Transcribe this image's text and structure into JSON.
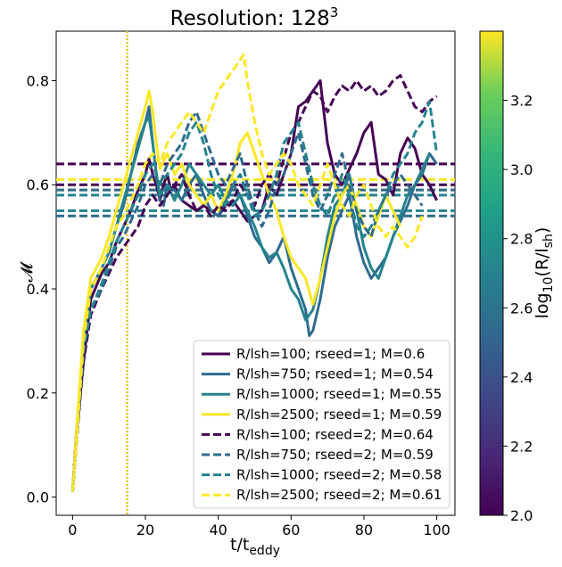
{
  "chart_data": {
    "type": "line",
    "title": "Resolution: 128",
    "title_superscript": "3",
    "xlabel_main": "t/t",
    "xlabel_sub": "eddy",
    "ylabel": "𝓜",
    "xlim": [
      -4.5,
      105
    ],
    "ylim": [
      -0.035,
      0.895
    ],
    "x_ticks": [
      "0",
      "20",
      "40",
      "60",
      "80",
      "100"
    ],
    "y_ticks": [
      "0.0",
      "0.2",
      "0.4",
      "0.6",
      "0.8"
    ],
    "x_tick_values": [
      0,
      20,
      40,
      60,
      80,
      100
    ],
    "y_tick_values": [
      0.0,
      0.2,
      0.4,
      0.6,
      0.8
    ],
    "vline_x": 15,
    "vline_color": "#e8c21e",
    "colorbar": {
      "label_main": "log",
      "label_sub1": "10",
      "label_mid": "(R/l",
      "label_sub2": "sh",
      "label_end": ")",
      "range": [
        2.0,
        3.4
      ],
      "ticks": [
        "2.0",
        "2.2",
        "2.4",
        "2.6",
        "2.8",
        "3.0",
        "3.2"
      ],
      "tick_values": [
        2.0,
        2.2,
        2.4,
        2.6,
        2.8,
        3.0,
        3.2
      ],
      "colormap": "viridis"
    },
    "legend_position": "lower-right",
    "series": [
      {
        "name": "R/lsh=100; rseed=1; M=0.6",
        "color": "#440154",
        "dashed": false,
        "mean": 0.6,
        "x": [
          0,
          1,
          3,
          5,
          8,
          10,
          12,
          14,
          16,
          18,
          20,
          21,
          22,
          23,
          24,
          25,
          26,
          27,
          28,
          29,
          30,
          32,
          34,
          36,
          38,
          40,
          42,
          44,
          46,
          48,
          50,
          52,
          54,
          56,
          58,
          60,
          62,
          64,
          66,
          68,
          70,
          72,
          74,
          76,
          78,
          80,
          82,
          84,
          86,
          88,
          90,
          92,
          94,
          96,
          98,
          100
        ],
        "y": [
          0.01,
          0.12,
          0.26,
          0.38,
          0.43,
          0.45,
          0.49,
          0.52,
          0.55,
          0.59,
          0.62,
          0.65,
          0.62,
          0.6,
          0.57,
          0.6,
          0.62,
          0.59,
          0.6,
          0.58,
          0.57,
          0.56,
          0.55,
          0.56,
          0.55,
          0.54,
          0.56,
          0.57,
          0.55,
          0.53,
          0.54,
          0.55,
          0.6,
          0.58,
          0.62,
          0.66,
          0.75,
          0.76,
          0.78,
          0.8,
          0.68,
          0.62,
          0.6,
          0.63,
          0.66,
          0.7,
          0.72,
          0.62,
          0.61,
          0.58,
          0.66,
          0.69,
          0.67,
          0.62,
          0.6,
          0.57
        ]
      },
      {
        "name": "R/lsh=750; rseed=1; M=0.54",
        "color": "#2f6b8e",
        "dashed": false,
        "mean": 0.54,
        "x": [
          0,
          1,
          3,
          5,
          8,
          10,
          12,
          14,
          16,
          18,
          20,
          21,
          22,
          23,
          24,
          25,
          26,
          28,
          30,
          32,
          34,
          36,
          38,
          40,
          42,
          44,
          46,
          48,
          50,
          52,
          54,
          56,
          58,
          60,
          62,
          64,
          65,
          66,
          68,
          70,
          72,
          74,
          76,
          78,
          80,
          82,
          84,
          86,
          88,
          90,
          92,
          94,
          96,
          98,
          100
        ],
        "y": [
          0.01,
          0.12,
          0.3,
          0.4,
          0.44,
          0.47,
          0.52,
          0.56,
          0.62,
          0.68,
          0.72,
          0.75,
          0.68,
          0.62,
          0.57,
          0.56,
          0.6,
          0.59,
          0.57,
          0.6,
          0.62,
          0.58,
          0.55,
          0.54,
          0.57,
          0.6,
          0.58,
          0.54,
          0.5,
          0.48,
          0.45,
          0.47,
          0.5,
          0.44,
          0.4,
          0.36,
          0.31,
          0.32,
          0.38,
          0.46,
          0.52,
          0.55,
          0.58,
          0.5,
          0.45,
          0.42,
          0.44,
          0.46,
          0.5,
          0.53,
          0.56,
          0.6,
          0.62,
          0.66,
          0.64
        ]
      },
      {
        "name": "R/lsh=1000; rseed=1; M=0.55",
        "color": "#25838e",
        "dashed": false,
        "mean": 0.55,
        "x": [
          0,
          1,
          3,
          5,
          8,
          10,
          12,
          14,
          16,
          18,
          20,
          21,
          22,
          23,
          24,
          26,
          28,
          30,
          32,
          34,
          36,
          38,
          40,
          42,
          44,
          46,
          48,
          50,
          52,
          54,
          56,
          58,
          60,
          62,
          64,
          66,
          68,
          70,
          72,
          74,
          76,
          78,
          80,
          82,
          84,
          86,
          88,
          90,
          92,
          94,
          96,
          98
        ],
        "y": [
          0.01,
          0.12,
          0.3,
          0.4,
          0.44,
          0.47,
          0.52,
          0.57,
          0.62,
          0.67,
          0.72,
          0.73,
          0.68,
          0.62,
          0.58,
          0.6,
          0.57,
          0.6,
          0.64,
          0.62,
          0.6,
          0.58,
          0.6,
          0.57,
          0.56,
          0.58,
          0.55,
          0.52,
          0.48,
          0.46,
          0.47,
          0.44,
          0.4,
          0.38,
          0.34,
          0.36,
          0.42,
          0.5,
          0.56,
          0.58,
          0.62,
          0.55,
          0.48,
          0.44,
          0.42,
          0.46,
          0.5,
          0.54,
          0.58,
          0.6,
          0.63,
          0.66
        ]
      },
      {
        "name": "R/lsh=2500; rseed=1; M=0.59",
        "color": "#fde725",
        "dashed": false,
        "mean": 0.59,
        "x": [
          0,
          1,
          3,
          5,
          8,
          10,
          12,
          14,
          16,
          18,
          20,
          21,
          22,
          23,
          24,
          26,
          28,
          30,
          32,
          34,
          36,
          38,
          40,
          42,
          44,
          46,
          48,
          50,
          52,
          54,
          56,
          58,
          60,
          62,
          64,
          66,
          68,
          70,
          72,
          74,
          76,
          78,
          80,
          82,
          84,
          86,
          88,
          90
        ],
        "y": [
          0.01,
          0.12,
          0.32,
          0.42,
          0.46,
          0.5,
          0.55,
          0.6,
          0.65,
          0.7,
          0.75,
          0.78,
          0.74,
          0.68,
          0.63,
          0.66,
          0.62,
          0.64,
          0.6,
          0.58,
          0.56,
          0.58,
          0.55,
          0.58,
          0.62,
          0.68,
          0.7,
          0.66,
          0.62,
          0.58,
          0.55,
          0.5,
          0.46,
          0.44,
          0.42,
          0.37,
          0.42,
          0.48,
          0.54,
          0.58,
          0.6,
          0.56,
          0.52,
          0.5,
          0.54,
          0.58,
          0.55,
          0.52
        ]
      },
      {
        "name": "R/lsh=100; rseed=2; M=0.64",
        "color": "#440154",
        "dashed": true,
        "mean": 0.64,
        "x": [
          0,
          1,
          3,
          5,
          8,
          10,
          12,
          14,
          16,
          18,
          20,
          22,
          24,
          26,
          28,
          30,
          32,
          34,
          36,
          38,
          40,
          42,
          44,
          46,
          48,
          50,
          52,
          54,
          56,
          58,
          60,
          62,
          64,
          66,
          68,
          70,
          72,
          74,
          76,
          78,
          80,
          82,
          84,
          86,
          88,
          90,
          92,
          94,
          96,
          98,
          100
        ],
        "y": [
          0.01,
          0.1,
          0.26,
          0.35,
          0.4,
          0.43,
          0.46,
          0.48,
          0.5,
          0.52,
          0.56,
          0.58,
          0.56,
          0.58,
          0.6,
          0.62,
          0.58,
          0.55,
          0.56,
          0.54,
          0.56,
          0.55,
          0.57,
          0.6,
          0.58,
          0.56,
          0.6,
          0.62,
          0.6,
          0.65,
          0.7,
          0.72,
          0.75,
          0.78,
          0.77,
          0.74,
          0.77,
          0.79,
          0.78,
          0.8,
          0.78,
          0.79,
          0.77,
          0.78,
          0.8,
          0.81,
          0.78,
          0.75,
          0.74,
          0.76,
          0.77
        ]
      },
      {
        "name": "R/lsh=750; rseed=2; M=0.59",
        "color": "#2f6b8e",
        "dashed": true,
        "mean": 0.59,
        "x": [
          0,
          1,
          3,
          5,
          8,
          10,
          12,
          14,
          16,
          18,
          20,
          22,
          24,
          26,
          28,
          30,
          32,
          34,
          36,
          38,
          40,
          42,
          44,
          46,
          48,
          50,
          52,
          54,
          56,
          58,
          60,
          62,
          64,
          66,
          68,
          70,
          72,
          74,
          76,
          78,
          80,
          82,
          84,
          86,
          88,
          90,
          92,
          94,
          96
        ],
        "y": [
          0.01,
          0.1,
          0.28,
          0.36,
          0.4,
          0.44,
          0.48,
          0.5,
          0.53,
          0.56,
          0.6,
          0.62,
          0.6,
          0.64,
          0.66,
          0.68,
          0.72,
          0.74,
          0.7,
          0.66,
          0.62,
          0.6,
          0.63,
          0.66,
          0.6,
          0.55,
          0.52,
          0.55,
          0.6,
          0.62,
          0.66,
          0.7,
          0.64,
          0.58,
          0.55,
          0.58,
          0.62,
          0.66,
          0.6,
          0.55,
          0.52,
          0.5,
          0.55,
          0.58,
          0.6,
          0.62,
          0.6,
          0.58,
          0.56
        ]
      },
      {
        "name": "R/lsh=1000; rseed=2; M=0.58",
        "color": "#25838e",
        "dashed": true,
        "mean": 0.58,
        "x": [
          0,
          1,
          3,
          5,
          8,
          10,
          12,
          14,
          16,
          18,
          20,
          22,
          24,
          26,
          28,
          30,
          32,
          34,
          36,
          38,
          40,
          42,
          44,
          46,
          48,
          50,
          52,
          54,
          56,
          58,
          60,
          62,
          64,
          66,
          68,
          70,
          72,
          74,
          76,
          78,
          80,
          82,
          84,
          86,
          88,
          90,
          92,
          94,
          96,
          98,
          100
        ],
        "y": [
          0.01,
          0.1,
          0.28,
          0.36,
          0.41,
          0.45,
          0.49,
          0.52,
          0.55,
          0.58,
          0.62,
          0.64,
          0.6,
          0.62,
          0.64,
          0.66,
          0.7,
          0.72,
          0.68,
          0.62,
          0.58,
          0.56,
          0.6,
          0.62,
          0.58,
          0.54,
          0.55,
          0.58,
          0.62,
          0.68,
          0.7,
          0.72,
          0.66,
          0.6,
          0.56,
          0.54,
          0.58,
          0.62,
          0.58,
          0.52,
          0.5,
          0.52,
          0.55,
          0.58,
          0.62,
          0.64,
          0.66,
          0.7,
          0.72,
          0.76,
          0.66
        ]
      },
      {
        "name": "R/lsh=2500; rseed=2; M=0.61",
        "color": "#fde725",
        "dashed": true,
        "mean": 0.61,
        "x": [
          0,
          1,
          3,
          5,
          8,
          10,
          12,
          14,
          16,
          18,
          20,
          22,
          24,
          26,
          28,
          30,
          32,
          34,
          36,
          38,
          40,
          42,
          44,
          46,
          47,
          48,
          50,
          52,
          54,
          56,
          58,
          60,
          62,
          64,
          66,
          68,
          70,
          72,
          74,
          76,
          78,
          80,
          82,
          84,
          86,
          88,
          90,
          92,
          94,
          96
        ],
        "y": [
          0.01,
          0.1,
          0.3,
          0.4,
          0.44,
          0.48,
          0.52,
          0.54,
          0.57,
          0.6,
          0.64,
          0.66,
          0.64,
          0.68,
          0.7,
          0.72,
          0.74,
          0.72,
          0.7,
          0.74,
          0.78,
          0.8,
          0.82,
          0.84,
          0.85,
          0.8,
          0.72,
          0.66,
          0.62,
          0.64,
          0.66,
          0.64,
          0.6,
          0.58,
          0.56,
          0.6,
          0.64,
          0.6,
          0.56,
          0.54,
          0.58,
          0.6,
          0.56,
          0.52,
          0.5,
          0.52,
          0.5,
          0.48,
          0.5,
          0.54
        ]
      }
    ]
  }
}
